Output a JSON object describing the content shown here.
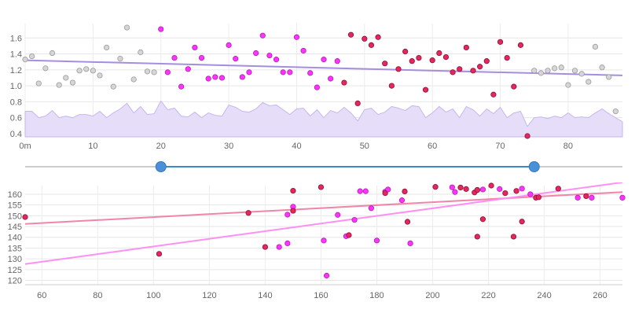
{
  "top_chart": {
    "x_ticks": [
      0,
      10,
      20,
      30,
      40,
      50,
      60,
      70,
      80
    ],
    "x_tick_labels": [
      "0m",
      "10",
      "20",
      "30",
      "40",
      "50",
      "60",
      "70",
      "80"
    ],
    "y_ticks": [
      0.4,
      0.6,
      0.8,
      1.0,
      1.2,
      1.4,
      1.6
    ],
    "y_tick_labels": [
      "0.4",
      "0.6",
      "0.8",
      "1.0",
      "1.2",
      "1.4",
      "1.6"
    ]
  },
  "bottom_chart": {
    "x_ticks": [
      60,
      80,
      100,
      120,
      140,
      160,
      180,
      200,
      220,
      240,
      260
    ],
    "x_tick_labels": [
      "60",
      "80",
      "100",
      "120",
      "140",
      "160",
      "180",
      "200",
      "220",
      "240",
      "260"
    ],
    "y_ticks": [
      120,
      125,
      130,
      135,
      140,
      145,
      150,
      155,
      160
    ],
    "y_tick_labels": [
      "120",
      "125",
      "130",
      "135",
      "140",
      "145",
      "150",
      "155",
      "160"
    ]
  },
  "colors": {
    "outside_range": "#c9c9c9",
    "series_magenta": "#ff33ff",
    "series_red": "#e8265e",
    "trend_top": "#a58ee0",
    "area_fill": "#e6def8",
    "area_stroke": "#c6b6ef",
    "trend_pink": "#ef86a8",
    "trend_magenta": "#ff8ff2",
    "slider_track": "#cccccc",
    "slider_active": "#3d88c8",
    "handle": "#4a90d9"
  },
  "slider": {
    "min": 0,
    "max": 88,
    "lower": 20,
    "upper": 75
  },
  "chart_data": [
    {
      "type": "scatter",
      "xlim": [
        0,
        88
      ],
      "ylim": [
        0.36,
        1.78
      ],
      "grid": true,
      "trend_line": {
        "x": [
          0,
          88
        ],
        "y": [
          1.32,
          1.13
        ]
      },
      "area_series": {
        "x": [
          0,
          1,
          2,
          3,
          4,
          5,
          6,
          7,
          8,
          9,
          10,
          11,
          12,
          13,
          14,
          15,
          16,
          17,
          18,
          19,
          20,
          21,
          22,
          23,
          24,
          25,
          26,
          27,
          28,
          29,
          30,
          31,
          32,
          33,
          34,
          35,
          36,
          37,
          38,
          39,
          40,
          41,
          42,
          43,
          44,
          45,
          46,
          47,
          48,
          49,
          50,
          51,
          52,
          53,
          54,
          55,
          56,
          57,
          58,
          59,
          60,
          61,
          62,
          63,
          64,
          65,
          66,
          67,
          68,
          69,
          70,
          71,
          72,
          73,
          74,
          75,
          76,
          77,
          78,
          79,
          80,
          81,
          82,
          83,
          84,
          85,
          86,
          87,
          88
        ],
        "y": [
          0.68,
          0.68,
          0.6,
          0.62,
          0.69,
          0.6,
          0.62,
          0.6,
          0.64,
          0.64,
          0.62,
          0.68,
          0.6,
          0.66,
          0.71,
          0.78,
          0.66,
          0.74,
          0.64,
          0.65,
          0.81,
          0.7,
          0.72,
          0.62,
          0.61,
          0.67,
          0.6,
          0.66,
          0.63,
          0.62,
          0.76,
          0.73,
          0.68,
          0.67,
          0.71,
          0.79,
          0.75,
          0.76,
          0.7,
          0.64,
          0.71,
          0.72,
          0.62,
          0.7,
          0.6,
          0.69,
          0.66,
          0.73,
          0.66,
          0.56,
          0.7,
          0.72,
          0.64,
          0.67,
          0.74,
          0.72,
          0.69,
          0.75,
          0.74,
          0.6,
          0.66,
          0.74,
          0.67,
          0.71,
          0.6,
          0.74,
          0.7,
          0.62,
          0.71,
          0.65,
          0.73,
          0.6,
          0.66,
          0.68,
          0.49,
          0.6,
          0.61,
          0.59,
          0.62,
          0.6,
          0.66,
          0.6,
          0.61,
          0.6,
          0.66,
          0.71,
          0.65,
          0.6,
          0.55
        ]
      },
      "points_outside": [
        {
          "x": 0,
          "y": 1.33
        },
        {
          "x": 1,
          "y": 1.37
        },
        {
          "x": 2,
          "y": 1.03
        },
        {
          "x": 3,
          "y": 1.22
        },
        {
          "x": 4,
          "y": 1.41
        },
        {
          "x": 5,
          "y": 1.01
        },
        {
          "x": 6,
          "y": 1.1
        },
        {
          "x": 7,
          "y": 1.04
        },
        {
          "x": 8,
          "y": 1.19
        },
        {
          "x": 9,
          "y": 1.21
        },
        {
          "x": 10,
          "y": 1.19
        },
        {
          "x": 11,
          "y": 1.13
        },
        {
          "x": 12,
          "y": 1.48
        },
        {
          "x": 13,
          "y": 0.99
        },
        {
          "x": 14,
          "y": 1.34
        },
        {
          "x": 15,
          "y": 1.73
        },
        {
          "x": 16,
          "y": 1.08
        },
        {
          "x": 17,
          "y": 1.42
        },
        {
          "x": 18,
          "y": 1.18
        },
        {
          "x": 19,
          "y": 1.17
        },
        {
          "x": 75,
          "y": 1.19
        },
        {
          "x": 76,
          "y": 1.16
        },
        {
          "x": 77,
          "y": 1.19
        },
        {
          "x": 78,
          "y": 1.22
        },
        {
          "x": 79,
          "y": 1.23
        },
        {
          "x": 80,
          "y": 1.01
        },
        {
          "x": 81,
          "y": 1.19
        },
        {
          "x": 82,
          "y": 1.15
        },
        {
          "x": 83,
          "y": 1.05
        },
        {
          "x": 84,
          "y": 1.49
        },
        {
          "x": 85,
          "y": 1.23
        },
        {
          "x": 86,
          "y": 1.11
        },
        {
          "x": 87,
          "y": 0.68
        }
      ],
      "points_magenta": [
        {
          "x": 20,
          "y": 1.71
        },
        {
          "x": 21,
          "y": 1.17
        },
        {
          "x": 22,
          "y": 1.35
        },
        {
          "x": 23,
          "y": 0.99
        },
        {
          "x": 24,
          "y": 1.21
        },
        {
          "x": 25,
          "y": 1.48
        },
        {
          "x": 26,
          "y": 1.35
        },
        {
          "x": 27,
          "y": 1.09
        },
        {
          "x": 28,
          "y": 1.11
        },
        {
          "x": 29,
          "y": 1.1
        },
        {
          "x": 30,
          "y": 1.51
        },
        {
          "x": 31,
          "y": 1.34
        },
        {
          "x": 32,
          "y": 1.11
        },
        {
          "x": 33,
          "y": 1.17
        },
        {
          "x": 34,
          "y": 1.41
        },
        {
          "x": 35,
          "y": 1.63
        },
        {
          "x": 36,
          "y": 1.38
        },
        {
          "x": 37,
          "y": 1.33
        },
        {
          "x": 38,
          "y": 1.17
        },
        {
          "x": 39,
          "y": 1.17
        },
        {
          "x": 40,
          "y": 1.61
        },
        {
          "x": 41,
          "y": 1.44
        },
        {
          "x": 42,
          "y": 1.16
        },
        {
          "x": 43,
          "y": 0.98
        },
        {
          "x": 44,
          "y": 1.33
        },
        {
          "x": 45,
          "y": 1.09
        },
        {
          "x": 46,
          "y": 1.31
        }
      ],
      "points_red": [
        {
          "x": 47,
          "y": 1.04
        },
        {
          "x": 48,
          "y": 1.64
        },
        {
          "x": 49,
          "y": 0.78
        },
        {
          "x": 50,
          "y": 1.59
        },
        {
          "x": 51,
          "y": 1.51
        },
        {
          "x": 52,
          "y": 1.61
        },
        {
          "x": 53,
          "y": 1.28
        },
        {
          "x": 54,
          "y": 1.0
        },
        {
          "x": 55,
          "y": 1.21
        },
        {
          "x": 56,
          "y": 1.43
        },
        {
          "x": 57,
          "y": 1.31
        },
        {
          "x": 58,
          "y": 1.35
        },
        {
          "x": 59,
          "y": 0.95
        },
        {
          "x": 60,
          "y": 1.32
        },
        {
          "x": 61,
          "y": 1.41
        },
        {
          "x": 62,
          "y": 1.36
        },
        {
          "x": 63,
          "y": 1.17
        },
        {
          "x": 64,
          "y": 1.21
        },
        {
          "x": 65,
          "y": 1.48
        },
        {
          "x": 66,
          "y": 1.19
        },
        {
          "x": 67,
          "y": 1.24
        },
        {
          "x": 68,
          "y": 1.31
        },
        {
          "x": 69,
          "y": 0.89
        },
        {
          "x": 70,
          "y": 1.55
        },
        {
          "x": 71,
          "y": 1.35
        },
        {
          "x": 72,
          "y": 0.99
        },
        {
          "x": 73,
          "y": 1.51
        },
        {
          "x": 74,
          "y": 0.37
        }
      ]
    },
    {
      "type": "scatter",
      "xlim": [
        54,
        268
      ],
      "ylim": [
        118,
        164
      ],
      "grid": true,
      "trend_lines": [
        {
          "color_key": "trend_pink",
          "x": [
            54,
            268
          ],
          "y": [
            146.2,
            161.0
          ]
        },
        {
          "color_key": "trend_magenta",
          "x": [
            54,
            268
          ],
          "y": [
            127.6,
            165.5
          ]
        }
      ],
      "points_magenta": [
        {
          "x": 148,
          "y": 150.5
        },
        {
          "x": 150,
          "y": 154.2
        },
        {
          "x": 148,
          "y": 137.2
        },
        {
          "x": 145,
          "y": 135.5
        },
        {
          "x": 161,
          "y": 138.5
        },
        {
          "x": 162,
          "y": 122.2
        },
        {
          "x": 166,
          "y": 150.4
        },
        {
          "x": 169,
          "y": 140.5
        },
        {
          "x": 172,
          "y": 148.1
        },
        {
          "x": 174,
          "y": 161.4
        },
        {
          "x": 176,
          "y": 161.4
        },
        {
          "x": 178,
          "y": 153.5
        },
        {
          "x": 180,
          "y": 138.5
        },
        {
          "x": 183,
          "y": 161.2
        },
        {
          "x": 184,
          "y": 162.2
        },
        {
          "x": 189,
          "y": 157.2
        },
        {
          "x": 192,
          "y": 137.2
        },
        {
          "x": 207,
          "y": 163.2
        },
        {
          "x": 208,
          "y": 161.0
        },
        {
          "x": 216,
          "y": 161.9
        },
        {
          "x": 218,
          "y": 162.2
        },
        {
          "x": 224,
          "y": 162.4
        },
        {
          "x": 232,
          "y": 162.6
        },
        {
          "x": 235,
          "y": 160.0
        },
        {
          "x": 252,
          "y": 158.4
        },
        {
          "x": 257,
          "y": 158.4
        },
        {
          "x": 268,
          "y": 158.4
        }
      ],
      "points_red": [
        {
          "x": 54,
          "y": 149.4
        },
        {
          "x": 102,
          "y": 132.3
        },
        {
          "x": 134,
          "y": 151.3
        },
        {
          "x": 140,
          "y": 135.5
        },
        {
          "x": 150,
          "y": 152.3
        },
        {
          "x": 150,
          "y": 161.6
        },
        {
          "x": 160,
          "y": 163.3
        },
        {
          "x": 170,
          "y": 141.0
        },
        {
          "x": 183,
          "y": 160.5
        },
        {
          "x": 190,
          "y": 161.3
        },
        {
          "x": 191,
          "y": 147.2
        },
        {
          "x": 201,
          "y": 163.4
        },
        {
          "x": 210,
          "y": 163.1
        },
        {
          "x": 212,
          "y": 162.4
        },
        {
          "x": 215,
          "y": 160.8
        },
        {
          "x": 216,
          "y": 162.0
        },
        {
          "x": 216,
          "y": 140.3
        },
        {
          "x": 218,
          "y": 148.4
        },
        {
          "x": 221,
          "y": 164.0
        },
        {
          "x": 226,
          "y": 160.5
        },
        {
          "x": 229,
          "y": 140.3
        },
        {
          "x": 230,
          "y": 161.5
        },
        {
          "x": 232,
          "y": 147.3
        },
        {
          "x": 237,
          "y": 158.4
        },
        {
          "x": 238,
          "y": 158.6
        },
        {
          "x": 245,
          "y": 162.6
        },
        {
          "x": 255,
          "y": 159.1
        }
      ]
    }
  ]
}
